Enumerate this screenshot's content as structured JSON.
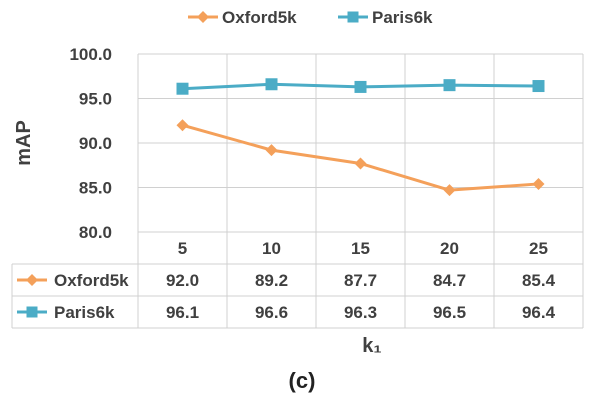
{
  "chart_data": {
    "type": "line",
    "categories": [
      "5",
      "10",
      "15",
      "20",
      "25"
    ],
    "series": [
      {
        "name": "Oxford5k",
        "values": [
          92.0,
          89.2,
          87.7,
          84.7,
          85.4
        ],
        "color": "#F4A05A",
        "marker": "diamond"
      },
      {
        "name": "Paris6k",
        "values": [
          96.1,
          96.6,
          96.3,
          96.5,
          96.4
        ],
        "color": "#4BACC6",
        "marker": "square"
      }
    ],
    "ylabel": "mAP",
    "xlabel": "k₁",
    "ylim": [
      80.0,
      100.0
    ],
    "yticks": [
      "80.0",
      "85.0",
      "90.0",
      "95.0",
      "100.0"
    ],
    "table_values": [
      [
        "92.0",
        "89.2",
        "87.7",
        "84.7",
        "85.4"
      ],
      [
        "96.1",
        "96.6",
        "96.3",
        "96.5",
        "96.4"
      ]
    ],
    "grid": true,
    "legend_position": "top",
    "data_table": true
  },
  "caption": "(c)"
}
